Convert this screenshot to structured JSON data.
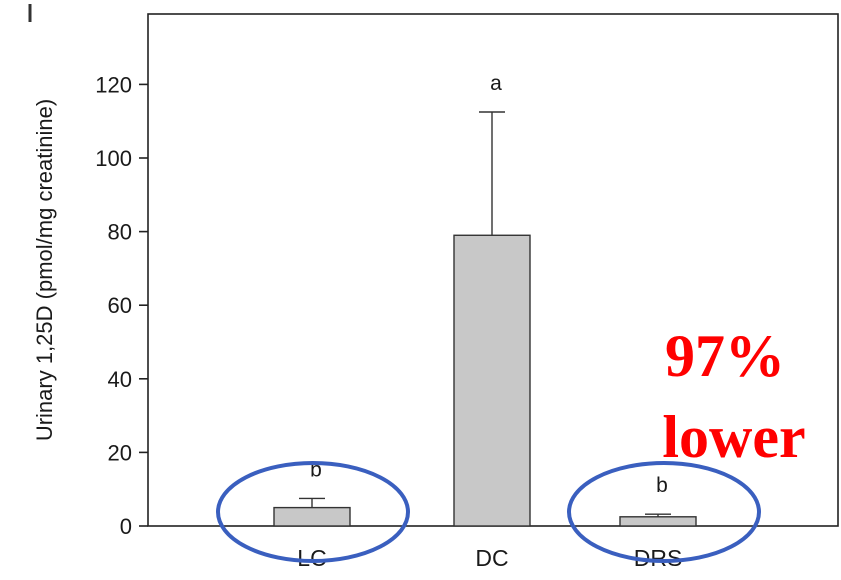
{
  "chart_data": {
    "type": "bar",
    "categories": [
      "LC",
      "DC",
      "DRS"
    ],
    "values": [
      5,
      79,
      2.5
    ],
    "error_upper": [
      7.5,
      112.5,
      3.2
    ],
    "significance": [
      "b",
      "a",
      "b"
    ],
    "title": "",
    "xlabel": "",
    "ylabel": "Urinary 1,25D (pmol/mg creatinine)",
    "ylim": [
      0,
      140
    ],
    "yticks": [
      0,
      20,
      40,
      60,
      80,
      100,
      120
    ],
    "grid": false,
    "bar_color": "#c8c8c8",
    "annotation": {
      "line1": "97%",
      "line2": "lower",
      "color": "#ff0000"
    },
    "highlight_circles": {
      "color": "#3a5fbf",
      "categories": [
        "LC",
        "DRS"
      ]
    }
  }
}
